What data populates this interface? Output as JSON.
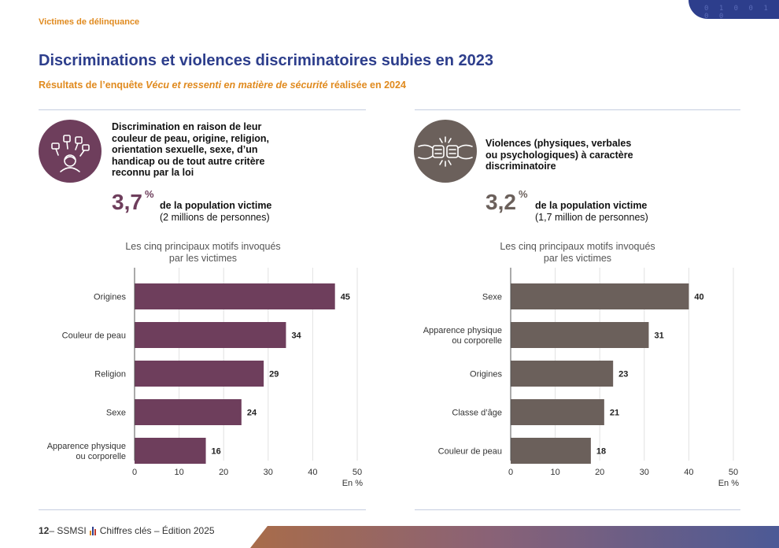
{
  "header": {
    "section_tag": "Victimes de délinquance",
    "corner_digits": "0 1 0 0 1 0 0",
    "title": "Discriminations et violences discriminatoires subies en 2023",
    "subtitle_prefix": "Résultats de l’enquête ",
    "subtitle_italic": "Vécu et ressenti en matière de sécurité",
    "subtitle_suffix": " réalisée en 2024"
  },
  "left_panel": {
    "icon": "discrimination-people-icon",
    "description_lines": [
      "Discrimination en raison de leur",
      "couleur de peau, origine, religion,",
      "orientation sexuelle, sexe, d’un",
      "handicap ou de tout autre critère",
      "reconnu par la loi"
    ],
    "big_value": "3,7",
    "big_value_unit": "%",
    "value_line1": "de la population victime",
    "value_line2": "(2 millions de personnes)",
    "chart_title_line1": "Les cinq principaux motifs invoqués",
    "chart_title_line2": "par les victimes"
  },
  "right_panel": {
    "icon": "fist-bump-icon",
    "description_lines": [
      "Violences (physiques, verbales",
      "ou psychologiques) à caractère",
      "discriminatoire"
    ],
    "big_value": "3,2",
    "big_value_unit": "%",
    "value_line1": "de la population victime",
    "value_line2": "(1,7 million de personnes)",
    "chart_title_line1": "Les cinq principaux motifs invoqués",
    "chart_title_line2": "par les victimes"
  },
  "chart_data": [
    {
      "type": "bar",
      "orientation": "horizontal",
      "categories": [
        [
          "Origines"
        ],
        [
          "Couleur de peau"
        ],
        [
          "Religion"
        ],
        [
          "Sexe"
        ],
        [
          "Apparence physique",
          "ou corporelle"
        ]
      ],
      "values": [
        45,
        34,
        29,
        24,
        16
      ],
      "xlim": [
        0,
        50
      ],
      "xticks": [
        0,
        10,
        20,
        30,
        40,
        50
      ],
      "xlabel": "En %",
      "color": "#6e3e5c"
    },
    {
      "type": "bar",
      "orientation": "horizontal",
      "categories": [
        [
          "Sexe"
        ],
        [
          "Apparence physique",
          "ou corporelle"
        ],
        [
          "Origines"
        ],
        [
          "Classe d’âge"
        ],
        [
          "Couleur de peau"
        ]
      ],
      "values": [
        40,
        31,
        23,
        21,
        18
      ],
      "xlim": [
        0,
        50
      ],
      "xticks": [
        0,
        10,
        20,
        30,
        40,
        50
      ],
      "xlabel": "En %",
      "color": "#6b605b"
    }
  ],
  "footer": {
    "page": "12",
    "left_text": " – SSMSI",
    "right_text": "Chiffres clés – Édition 2025",
    "bar_colors": [
      "#e08a1e",
      "#2d3e8c",
      "#c0392b"
    ]
  },
  "colors": {
    "title_blue": "#2d3e8c",
    "accent_orange": "#e08a1e",
    "plum": "#6e3e5c",
    "taupe": "#6b605b"
  }
}
